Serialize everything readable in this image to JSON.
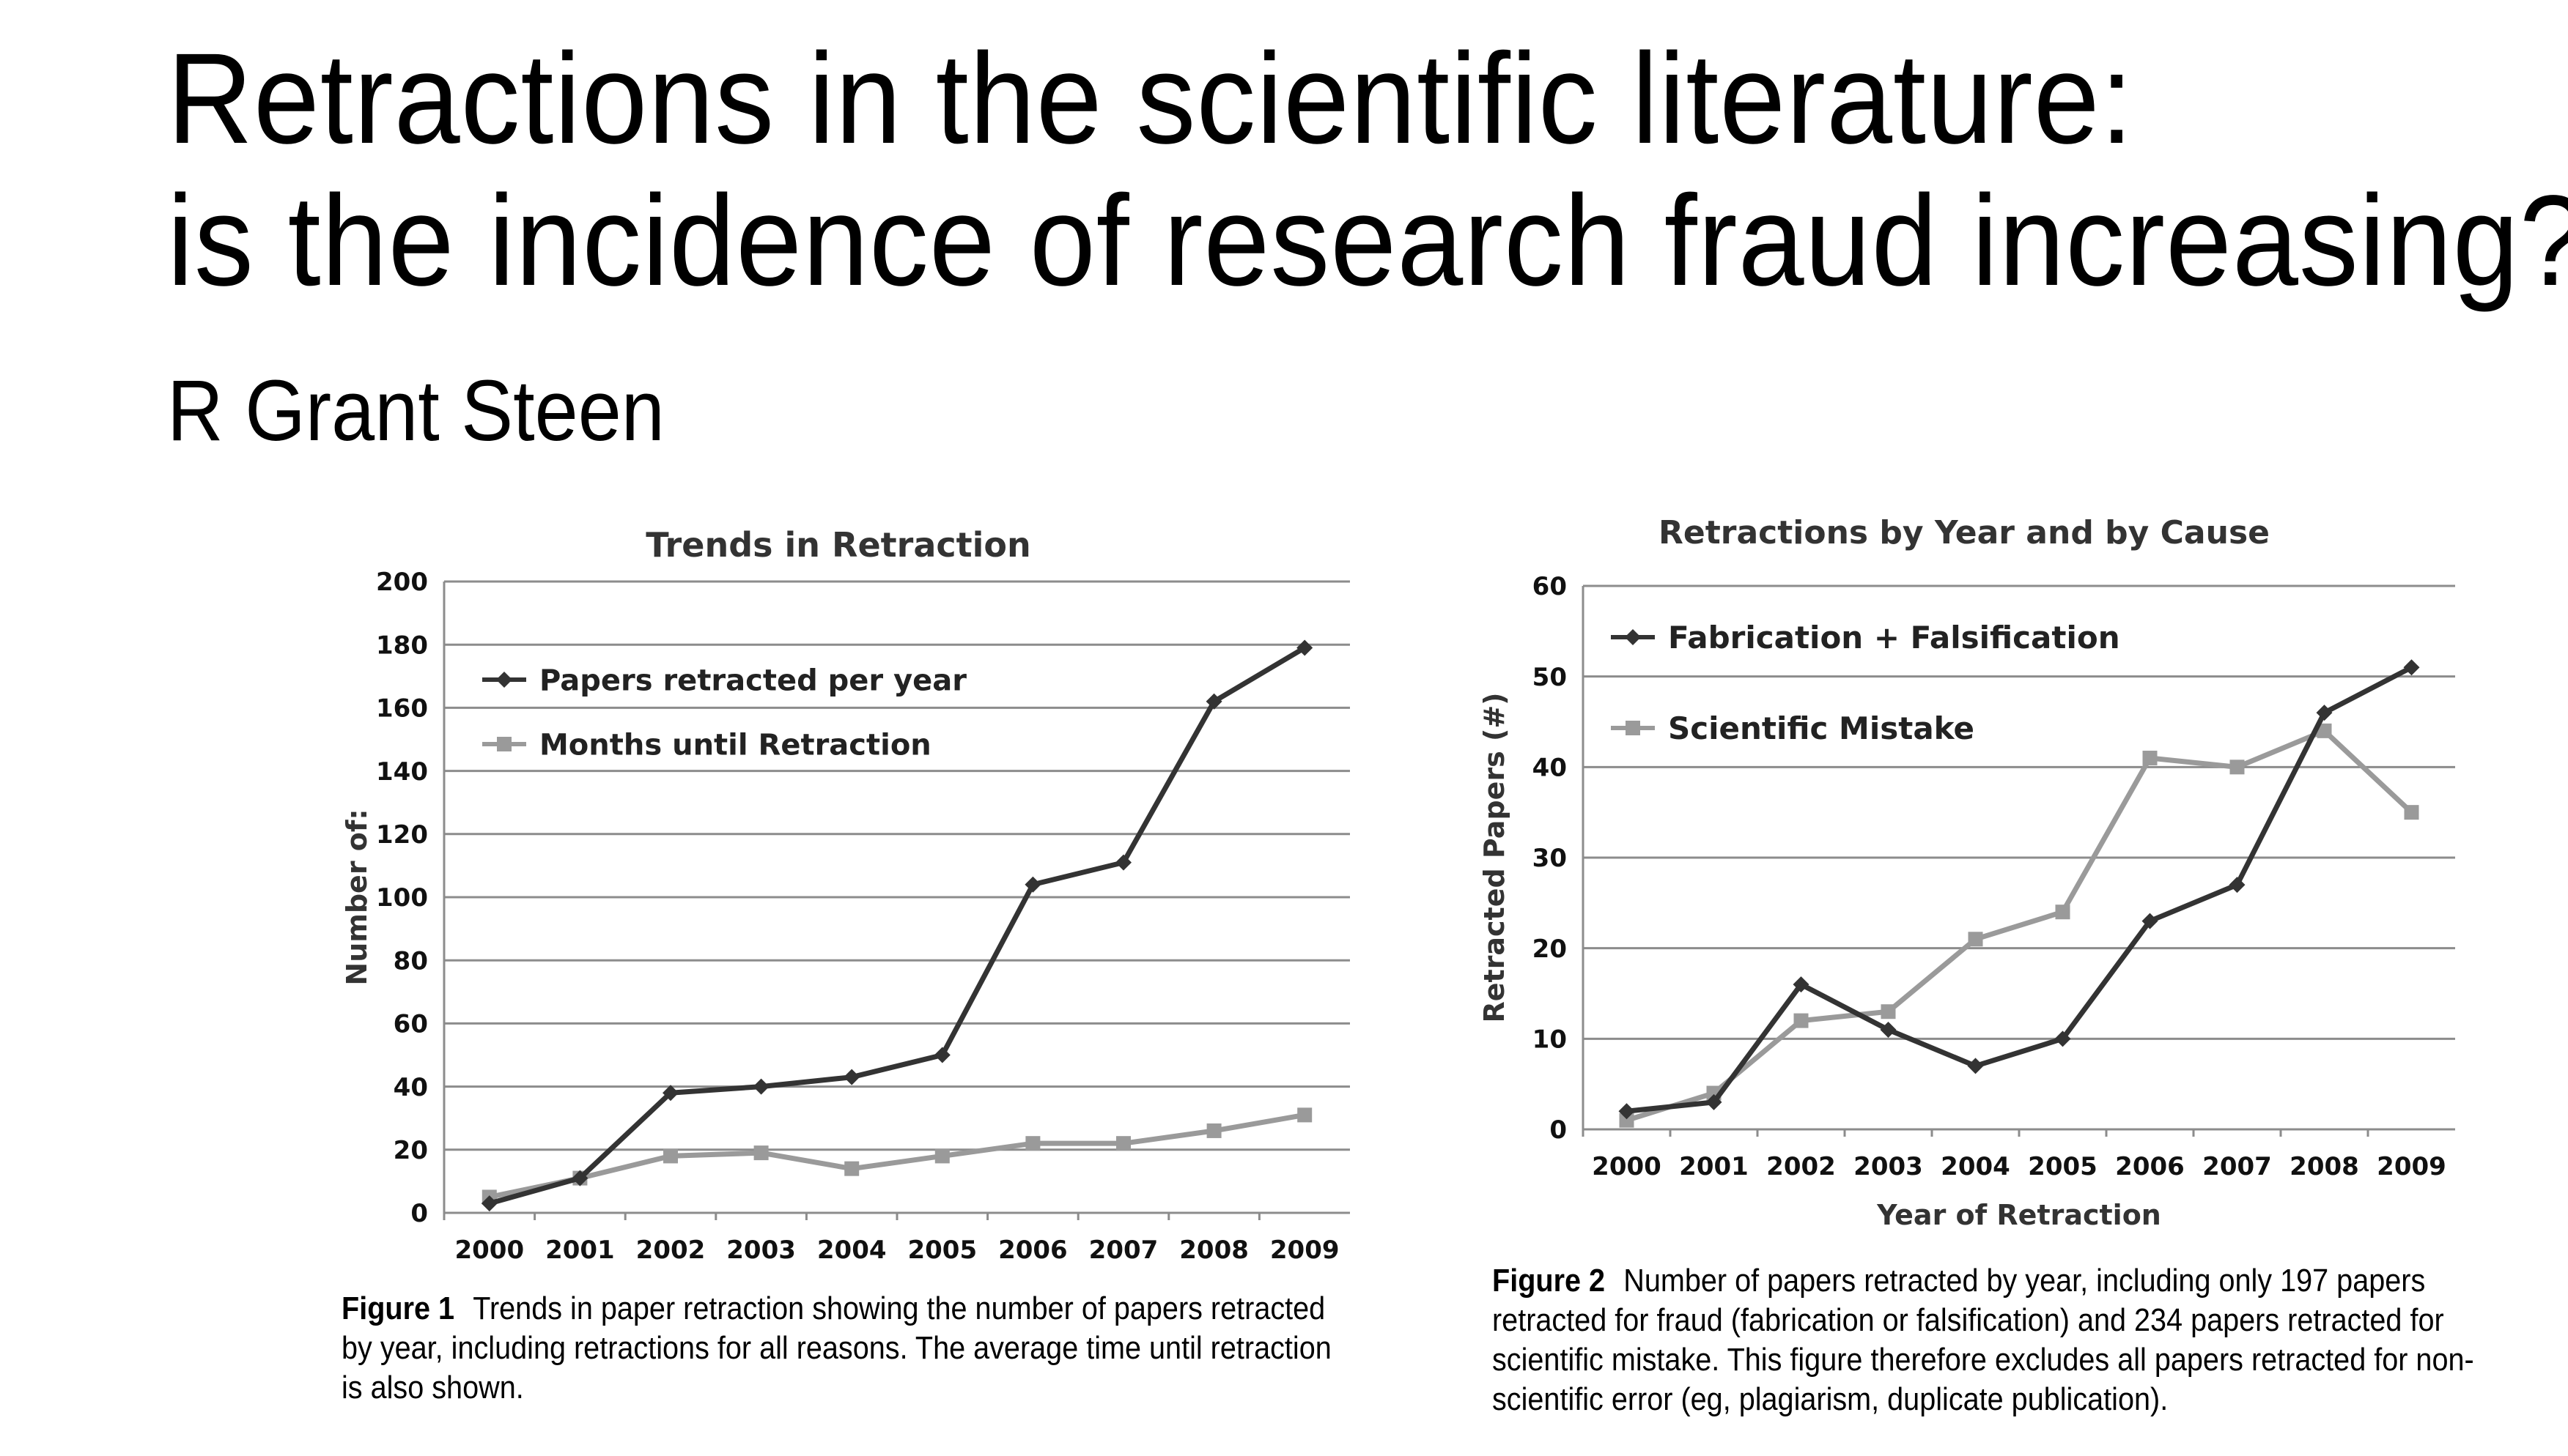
{
  "page": {
    "title_line1": "Retractions in the scientific literature:",
    "title_line2": "is the incidence of research fraud increasing?",
    "author": "R Grant Steen"
  },
  "figures": [
    {
      "label": "Figure 1",
      "caption": "Trends in paper retraction showing the number of papers retracted by year, including retractions for all reasons. The average time until retraction is also shown."
    },
    {
      "label": "Figure 2",
      "caption": "Number of papers retracted by year, including only 197 papers retracted for fraud (fabrication or falsification) and 234 papers retracted for scientific mistake. This figure therefore excludes all papers retracted for non-scientific error (eg, plagiarism, duplicate publication)."
    }
  ],
  "chart_data": [
    {
      "type": "line",
      "title": "Trends in Retraction",
      "xlabel": "",
      "ylabel": "Number of:",
      "categories": [
        "2000",
        "2001",
        "2002",
        "2003",
        "2004",
        "2005",
        "2006",
        "2007",
        "2008",
        "2009"
      ],
      "ylim": [
        0,
        200
      ],
      "yticks": [
        0,
        20,
        40,
        60,
        80,
        100,
        120,
        140,
        160,
        180,
        200
      ],
      "grid": true,
      "legend_position": "top-left",
      "series": [
        {
          "name": "Papers retracted per year",
          "marker": "diamond",
          "color": "#333333",
          "values": [
            3,
            11,
            38,
            40,
            43,
            50,
            104,
            111,
            162,
            179
          ]
        },
        {
          "name": "Months until Retraction",
          "marker": "square",
          "color": "#9a9a9a",
          "values": [
            5,
            11,
            18,
            19,
            14,
            18,
            22,
            22,
            26,
            31
          ]
        }
      ]
    },
    {
      "type": "line",
      "title": "Retractions by Year and by Cause",
      "xlabel": "Year of Retraction",
      "ylabel": "Retracted Papers (#)",
      "categories": [
        "2000",
        "2001",
        "2002",
        "2003",
        "2004",
        "2005",
        "2006",
        "2007",
        "2008",
        "2009"
      ],
      "ylim": [
        0,
        60
      ],
      "yticks": [
        0,
        10,
        20,
        30,
        40,
        50,
        60
      ],
      "grid": true,
      "legend_position": "top-left",
      "series": [
        {
          "name": "Fabrication + Falsification",
          "marker": "diamond",
          "color": "#333333",
          "values": [
            2,
            3,
            16,
            11,
            7,
            10,
            23,
            27,
            46,
            51
          ]
        },
        {
          "name": "Scientific Mistake",
          "marker": "square",
          "color": "#9a9a9a",
          "values": [
            1,
            4,
            12,
            13,
            21,
            24,
            41,
            40,
            44,
            35
          ]
        }
      ]
    }
  ]
}
